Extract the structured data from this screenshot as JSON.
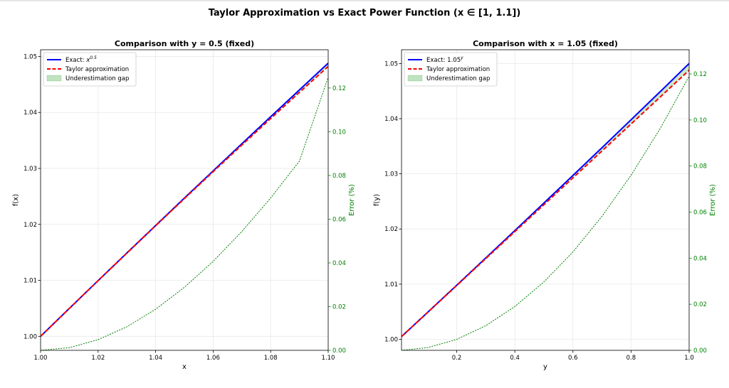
{
  "suptitle": "Taylor Approximation vs Exact Power Function (x ∈ [1, 1.1])",
  "colors": {
    "exact": "#0000ff",
    "taylor": "#ff0000",
    "gap": "#2ca02c",
    "error": "#008000",
    "grid": "#e8e8e8"
  },
  "chart_data": [
    {
      "type": "line",
      "title": "Comparison with y = 0.5 (fixed)",
      "xlabel": "x",
      "ylabel": "f(x)",
      "ylabel_right": "Error (%)",
      "xlim": [
        1.0,
        1.1
      ],
      "ylim": [
        0.9975,
        1.0512
      ],
      "ylim_right": [
        0.0,
        0.1375
      ],
      "xticks": [
        1.0,
        1.02,
        1.04,
        1.06,
        1.08,
        1.1
      ],
      "xtick_labels": [
        "1.00",
        "1.02",
        "1.04",
        "1.06",
        "1.08",
        "1.10"
      ],
      "yticks": [
        1.0,
        1.01,
        1.02,
        1.03,
        1.04,
        1.05
      ],
      "ytick_labels": [
        "1.00",
        "1.01",
        "1.02",
        "1.03",
        "1.04",
        "1.05"
      ],
      "yticks_right": [
        0.0,
        0.02,
        0.04,
        0.06,
        0.08,
        0.1,
        0.12
      ],
      "ytick_labels_right": [
        "0.00",
        "0.02",
        "0.04",
        "0.06",
        "0.08",
        "0.10",
        "0.12"
      ],
      "grid": true,
      "legend_position": "top-left",
      "legend": [
        {
          "label": "Exact: ",
          "label_math_base": "x",
          "label_math_sup": "0.5",
          "style": "solid"
        },
        {
          "label": "Taylor approximation",
          "style": "dashed"
        },
        {
          "label": "Underestimation gap",
          "style": "fill"
        }
      ],
      "series": [
        {
          "name": "Exact: x^0.5",
          "style": "solid",
          "x": [
            1.0,
            1.01,
            1.02,
            1.03,
            1.04,
            1.05,
            1.06,
            1.07,
            1.08,
            1.09,
            1.1
          ],
          "y": [
            1.0,
            1.00499,
            1.00995,
            1.01489,
            1.0198,
            1.0247,
            1.02956,
            1.03441,
            1.03923,
            1.04403,
            1.04881
          ]
        },
        {
          "name": "Taylor approximation",
          "style": "dashed",
          "x": [
            1.0,
            1.01,
            1.02,
            1.03,
            1.04,
            1.05,
            1.06,
            1.07,
            1.08,
            1.09,
            1.1
          ],
          "y": [
            1.0,
            1.00499,
            1.00995,
            1.01487,
            1.01976,
            1.02461,
            1.02942,
            1.03418,
            1.03891,
            1.04359,
            1.04822
          ]
        },
        {
          "name": "Error (%)",
          "style": "dotted",
          "axis": "right",
          "x": [
            1.0,
            1.01,
            1.02,
            1.03,
            1.04,
            1.05,
            1.06,
            1.07,
            1.08,
            1.09,
            1.1
          ],
          "y": [
            0.0,
            0.00124,
            0.00488,
            0.01078,
            0.0188,
            0.02882,
            0.04071,
            0.05438,
            0.0697,
            0.08657,
            0.1249
          ]
        }
      ]
    },
    {
      "type": "line",
      "title": "Comparison with x = 1.05 (fixed)",
      "xlabel": "y",
      "ylabel": "f(y)",
      "ylabel_right": "Error (%)",
      "xlim": [
        0.01,
        1.0
      ],
      "ylim": [
        0.998,
        1.0525
      ],
      "ylim_right": [
        0.0,
        0.1305
      ],
      "xticks": [
        0.2,
        0.4,
        0.6,
        0.8,
        1.0
      ],
      "xtick_labels": [
        "0.2",
        "0.4",
        "0.6",
        "0.8",
        "1.0"
      ],
      "yticks": [
        1.0,
        1.01,
        1.02,
        1.03,
        1.04,
        1.05
      ],
      "ytick_labels": [
        "1.00",
        "1.01",
        "1.02",
        "1.03",
        "1.04",
        "1.05"
      ],
      "yticks_right": [
        0.0,
        0.02,
        0.04,
        0.06,
        0.08,
        0.1,
        0.12
      ],
      "ytick_labels_right": [
        "0.00",
        "0.02",
        "0.04",
        "0.06",
        "0.08",
        "0.10",
        "0.12"
      ],
      "grid": true,
      "legend_position": "top-left",
      "legend": [
        {
          "label": "Exact: 1.05",
          "label_math_sup": "y",
          "style": "solid"
        },
        {
          "label": "Taylor approximation",
          "style": "dashed"
        },
        {
          "label": "Underestimation gap",
          "style": "fill"
        }
      ],
      "series": [
        {
          "name": "Exact: 1.05^y",
          "style": "solid",
          "x": [
            0.01,
            0.1,
            0.2,
            0.3,
            0.4,
            0.5,
            0.6,
            0.7,
            0.8,
            0.9,
            1.0
          ],
          "y": [
            1.00049,
            1.00489,
            1.00981,
            1.01475,
            1.01971,
            1.0247,
            1.02971,
            1.03474,
            1.0398,
            1.04488,
            1.05
          ]
        },
        {
          "name": "Taylor approximation",
          "style": "dashed",
          "x": [
            0.01,
            0.1,
            0.2,
            0.3,
            0.4,
            0.5,
            0.6,
            0.7,
            0.8,
            0.9,
            1.0
          ],
          "y": [
            1.00049,
            1.00488,
            1.00976,
            1.01464,
            1.01952,
            1.0244,
            1.02927,
            1.03415,
            1.03903,
            1.04391,
            1.04879
          ]
        },
        {
          "name": "Error (%)",
          "style": "dotted",
          "axis": "right",
          "x": [
            0.01,
            0.1,
            0.2,
            0.3,
            0.4,
            0.5,
            0.6,
            0.7,
            0.8,
            0.9,
            1.0
          ],
          "y": [
            0.0,
            0.00119,
            0.00476,
            0.0107,
            0.019,
            0.0297,
            0.0427,
            0.0582,
            0.076,
            0.0962,
            0.119
          ]
        }
      ]
    }
  ]
}
